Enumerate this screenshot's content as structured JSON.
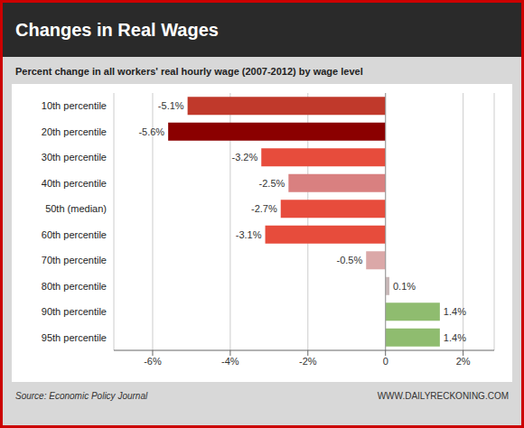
{
  "chart_data": {
    "type": "bar",
    "orientation": "horizontal",
    "title": "Changes in Real Wages",
    "subtitle": "Percent change in all workers' real hourly wage (2007-2012) by wage level",
    "annotations": [
      "Source: Economic Policy Journal",
      "WWW.DAILYRECKONING.COM"
    ],
    "categories": [
      "10th percentile",
      "20th percentile",
      "30th percentile",
      "40th percentile",
      "50th (median)",
      "60th percentile",
      "70th percentile",
      "80th percentile",
      "90th percentile",
      "95th percentile"
    ],
    "values": [
      -5.1,
      -5.6,
      -3.2,
      -2.5,
      -2.7,
      -3.1,
      -0.5,
      0.1,
      1.4,
      1.4
    ],
    "value_labels": [
      "-5.1%",
      "-5.6%",
      "-3.2%",
      "-2.5%",
      "-2.7%",
      "-3.1%",
      "-0.5%",
      "0.1%",
      "1.4%",
      "1.4%"
    ],
    "data_labels": true,
    "colors": [
      "#c0392b",
      "#8b0000",
      "#e74c3c",
      "#d98080",
      "#e74c3c",
      "#e74c3c",
      "#dba8a8",
      "#c8b8b8",
      "#8fbc6f",
      "#8fbc6f"
    ],
    "xlim": [
      -7,
      2.8
    ],
    "xticks": [
      {
        "value": -6,
        "label": "-6%"
      },
      {
        "value": -4,
        "label": "-4%"
      },
      {
        "value": -2,
        "label": "-2%"
      },
      0,
      {
        "value": 2,
        "label": "2%"
      }
    ],
    "grid": true
  }
}
